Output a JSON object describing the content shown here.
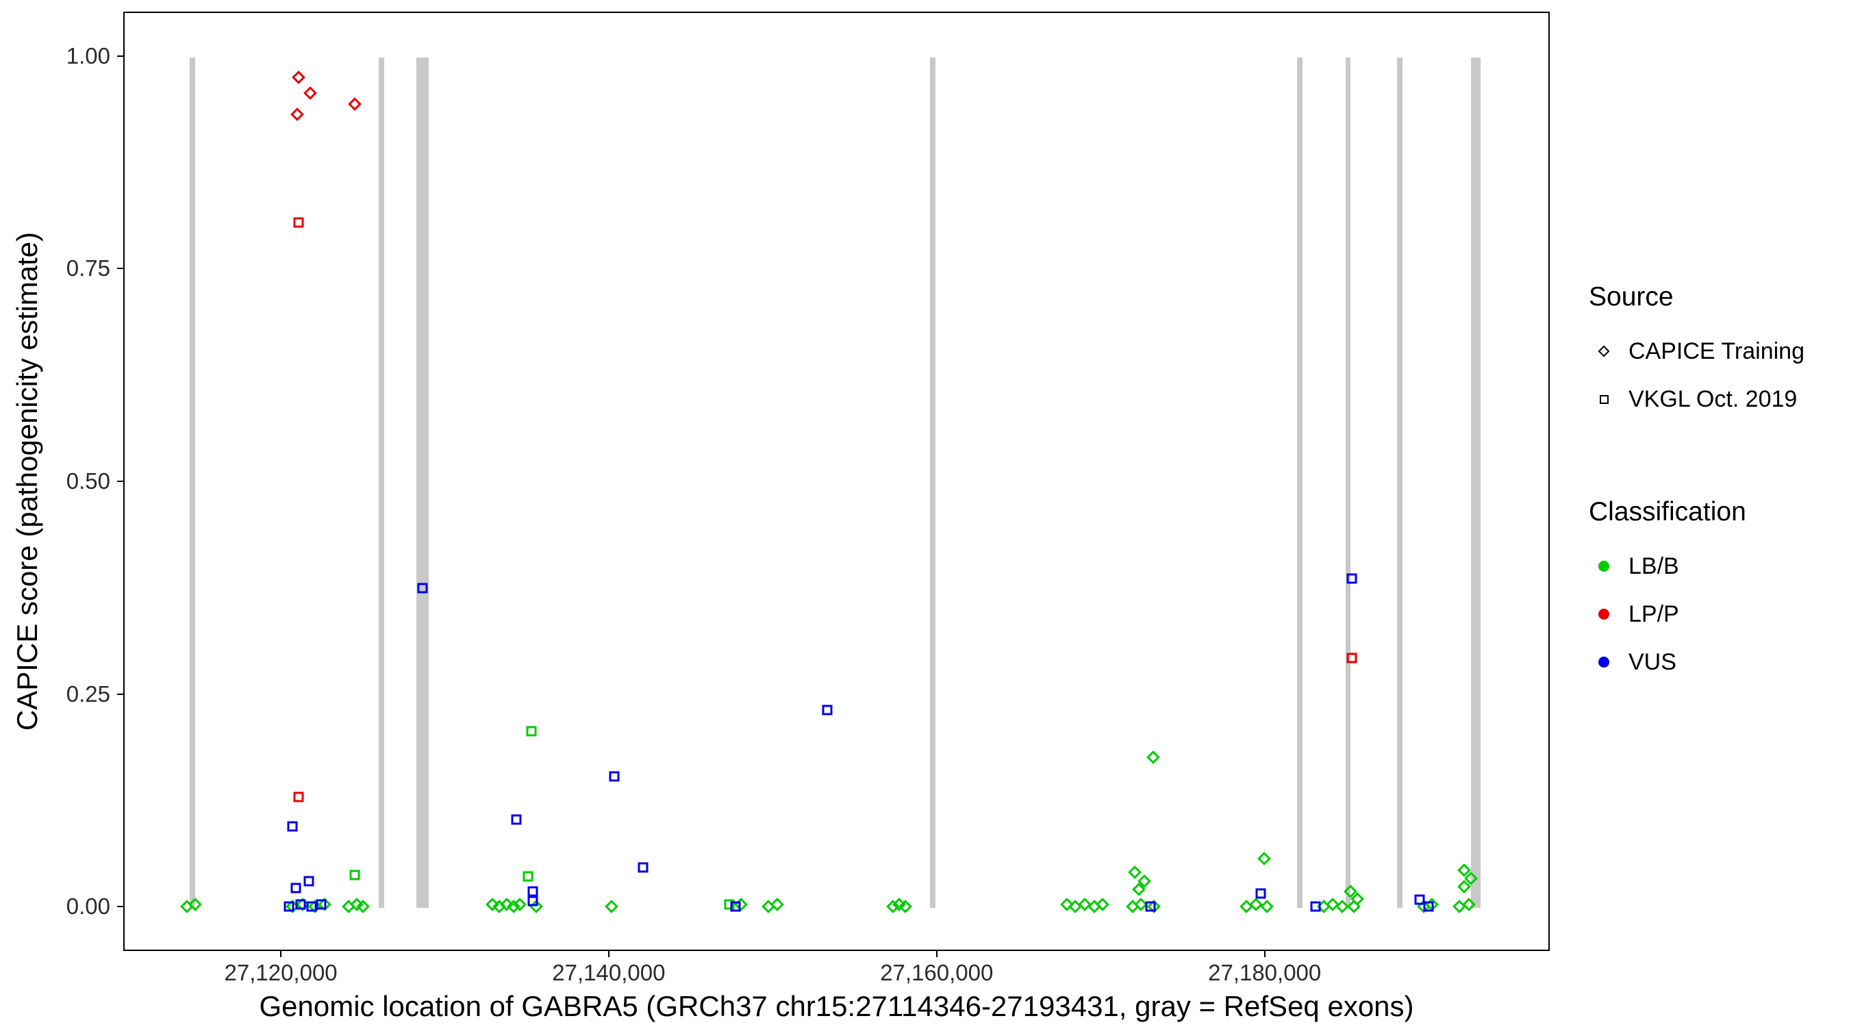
{
  "figure": {
    "x_axis": {
      "title": "Genomic location of GABRA5 (GRCh37 chr15:27114346-27193431, gray = RefSeq exons)",
      "ticks": [
        {
          "value": 27120000,
          "label": "27,120,000"
        },
        {
          "value": 27140000,
          "label": "27,140,000"
        },
        {
          "value": 27160000,
          "label": "27,160,000"
        },
        {
          "value": 27180000,
          "label": "27,180,000"
        }
      ]
    },
    "y_axis": {
      "title": "CAPICE score (pathogenicity estimate)",
      "ticks": [
        {
          "value": 0.0,
          "label": "0.00"
        },
        {
          "value": 0.25,
          "label": "0.25"
        },
        {
          "value": 0.5,
          "label": "0.50"
        },
        {
          "value": 0.75,
          "label": "0.75"
        },
        {
          "value": 1.0,
          "label": "1.00"
        }
      ]
    },
    "legend": {
      "source": {
        "title": "Source",
        "items": [
          {
            "label": "CAPICE Training",
            "marker": "diamond"
          },
          {
            "label": "VKGL Oct. 2019",
            "marker": "square"
          }
        ]
      },
      "classification": {
        "title": "Classification",
        "items": [
          {
            "label": "LB/B",
            "color": "#00CC00"
          },
          {
            "label": "LP/P",
            "color": "#E60000"
          },
          {
            "label": "VUS",
            "color": "#0000EE"
          }
        ]
      }
    }
  },
  "chart_data": {
    "type": "scatter",
    "xlabel": "Genomic location of GABRA5 (GRCh37 chr15:27114346-27193431, gray = RefSeq exons)",
    "ylabel": "CAPICE score (pathogenicity estimate)",
    "xlim": [
      27110392,
      27197385
    ],
    "ylim": [
      -0.052,
      1.052
    ],
    "grid": false,
    "legend_position": "right",
    "exon_color": "#C8C8C8",
    "exons": [
      [
        27114346,
        27114680
      ],
      [
        27125900,
        27126220
      ],
      [
        27128180,
        27128920
      ],
      [
        27159500,
        27159830
      ],
      [
        27181900,
        27182230
      ],
      [
        27184840,
        27185170
      ],
      [
        27187980,
        27188310
      ],
      [
        27192500,
        27193100
      ]
    ],
    "series": [
      {
        "name": "CAPICE Training / LB-B",
        "source": "CAPICE Training",
        "classification": "LB/B",
        "marker": "diamond",
        "color": "#00CC00",
        "points": [
          [
            27114188,
            0.002
          ],
          [
            27114699,
            0.004
          ],
          [
            27120612,
            0.002
          ],
          [
            27121269,
            0.004
          ],
          [
            27121999,
            0.002
          ],
          [
            27122583,
            0.004
          ],
          [
            27124043,
            0.002
          ],
          [
            27124554,
            0.004
          ],
          [
            27124919,
            0.002
          ],
          [
            27132803,
            0.004
          ],
          [
            27133241,
            0.002
          ],
          [
            27133679,
            0.004
          ],
          [
            27134117,
            0.002
          ],
          [
            27134482,
            0.004
          ],
          [
            27135504,
            0.002
          ],
          [
            27140103,
            0.002
          ],
          [
            27147987,
            0.004
          ],
          [
            27149666,
            0.002
          ],
          [
            27150177,
            0.004
          ],
          [
            27157258,
            0.002
          ],
          [
            27157623,
            0.004
          ],
          [
            27157988,
            0.002
          ],
          [
            27167843,
            0.004
          ],
          [
            27168354,
            0.002
          ],
          [
            27168938,
            0.004
          ],
          [
            27169522,
            0.002
          ],
          [
            27170033,
            0.004
          ],
          [
            27171858,
            0.002
          ],
          [
            27172004,
            0.042
          ],
          [
            27172223,
            0.022
          ],
          [
            27172369,
            0.004
          ],
          [
            27172588,
            0.032
          ],
          [
            27173099,
            0.177
          ],
          [
            27173172,
            0.002
          ],
          [
            27178793,
            0.002
          ],
          [
            27179377,
            0.004
          ],
          [
            27179888,
            0.058
          ],
          [
            27180034,
            0.002
          ],
          [
            27183538,
            0.002
          ],
          [
            27184049,
            0.004
          ],
          [
            27184633,
            0.002
          ],
          [
            27185144,
            0.02
          ],
          [
            27185363,
            0.002
          ],
          [
            27185582,
            0.011
          ],
          [
            27189597,
            0.002
          ],
          [
            27190108,
            0.004
          ],
          [
            27191787,
            0.002
          ],
          [
            27192079,
            0.045
          ],
          [
            27192079,
            0.025
          ],
          [
            27192371,
            0.004
          ],
          [
            27192517,
            0.035
          ]
        ]
      },
      {
        "name": "CAPICE Training / LP-P",
        "source": "CAPICE Training",
        "classification": "LP/P",
        "marker": "diamond",
        "color": "#E60000",
        "points": [
          [
            27120904,
            0.933
          ],
          [
            27120977,
            0.976
          ],
          [
            27121707,
            0.958
          ],
          [
            27124407,
            0.945
          ]
        ]
      },
      {
        "name": "VKGL Oct. 2019 / LB-B",
        "source": "VKGL Oct. 2019",
        "classification": "LB/B",
        "marker": "square",
        "color": "#00CC00",
        "points": [
          [
            27124407,
            0.039
          ],
          [
            27134993,
            0.037
          ],
          [
            27135212,
            0.208
          ],
          [
            27147257,
            0.004
          ]
        ]
      },
      {
        "name": "VKGL Oct. 2019 / VUS",
        "source": "VKGL Oct. 2019",
        "classification": "VUS",
        "marker": "square",
        "color": "#0000EE",
        "points": [
          [
            27120393,
            0.002
          ],
          [
            27120612,
            0.096
          ],
          [
            27120831,
            0.024
          ],
          [
            27121123,
            0.004
          ],
          [
            27121634,
            0.032
          ],
          [
            27121780,
            0.002
          ],
          [
            27122364,
            0.004
          ],
          [
            27128569,
            0.376
          ],
          [
            27134263,
            0.104
          ],
          [
            27135285,
            0.02
          ],
          [
            27135285,
            0.008
          ],
          [
            27140249,
            0.155
          ],
          [
            27142001,
            0.048
          ],
          [
            27147622,
            0.002
          ],
          [
            27153243,
            0.233
          ],
          [
            27172953,
            0.002
          ],
          [
            27179669,
            0.017
          ],
          [
            27183027,
            0.002
          ],
          [
            27185217,
            0.387
          ],
          [
            27189378,
            0.01
          ],
          [
            27189889,
            0.002
          ]
        ]
      },
      {
        "name": "VKGL Oct. 2019 / LP-P",
        "source": "VKGL Oct. 2019",
        "classification": "LP/P",
        "marker": "square",
        "color": "#E60000",
        "points": [
          [
            27120977,
            0.806
          ],
          [
            27120977,
            0.131
          ],
          [
            27185217,
            0.294
          ]
        ]
      }
    ]
  }
}
